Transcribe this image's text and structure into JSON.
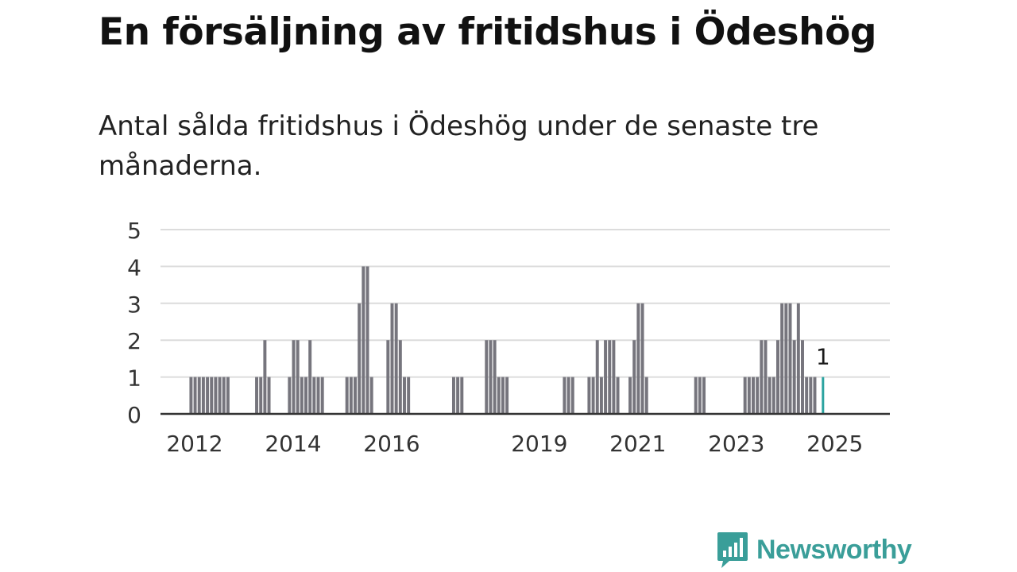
{
  "title": "En försäljning av fritidshus i Ödeshög",
  "subtitle": "Antal sålda fritidshus i Ödeshög under de senaste tre månaderna.",
  "logo": {
    "text": "Newsworthy",
    "icon": "bar-chart-speech-bubble-icon",
    "color": "#3a9e99"
  },
  "colors": {
    "bar": "#76757d",
    "highlight": "#2ba3a0",
    "grid": "#dcdcdc",
    "axis": "#333333"
  },
  "chart_data": {
    "type": "bar",
    "x_axis": {
      "type": "date",
      "start": "2012-01",
      "end": "2025-05",
      "tick_labels": [
        "2012",
        "2014",
        "2016",
        "2019",
        "2021",
        "2023",
        "2025"
      ]
    },
    "ylim": [
      0,
      5
    ],
    "y_ticks": [
      0,
      1,
      2,
      3,
      4,
      5
    ],
    "grid": true,
    "xlabel": "",
    "ylabel": "",
    "months": [
      "2012-06",
      "2012-07",
      "2012-08",
      "2012-09",
      "2012-10",
      "2012-11",
      "2012-12",
      "2013-01",
      "2013-02",
      "2013-03",
      "2013-10",
      "2013-11",
      "2013-12",
      "2014-01",
      "2014-06",
      "2014-07",
      "2014-08",
      "2014-09",
      "2014-10",
      "2014-11",
      "2014-12",
      "2015-01",
      "2015-02",
      "2015-08",
      "2015-09",
      "2015-10",
      "2015-11",
      "2015-12",
      "2016-01",
      "2016-02",
      "2016-06",
      "2016-07",
      "2016-08",
      "2016-09",
      "2016-10",
      "2016-11",
      "2017-10",
      "2017-11",
      "2017-12",
      "2018-06",
      "2018-07",
      "2018-08",
      "2018-09",
      "2018-10",
      "2018-11",
      "2020-01",
      "2020-02",
      "2020-03",
      "2020-07",
      "2020-08",
      "2020-09",
      "2020-10",
      "2020-11",
      "2020-12",
      "2021-01",
      "2021-02",
      "2021-05",
      "2021-06",
      "2021-07",
      "2021-08",
      "2021-09",
      "2022-09",
      "2022-10",
      "2022-11",
      "2023-09",
      "2023-10",
      "2023-11",
      "2023-12",
      "2024-01",
      "2024-02",
      "2024-03",
      "2024-04",
      "2024-05",
      "2024-06",
      "2024-07",
      "2024-08",
      "2024-09",
      "2024-10",
      "2024-11",
      "2024-12",
      "2025-01",
      "2025-02",
      "2025-04"
    ],
    "values": [
      1,
      1,
      1,
      1,
      1,
      1,
      1,
      1,
      1,
      1,
      1,
      1,
      2,
      1,
      1,
      2,
      2,
      1,
      1,
      2,
      1,
      1,
      1,
      1,
      1,
      1,
      3,
      4,
      4,
      1,
      2,
      3,
      3,
      2,
      1,
      1,
      1,
      1,
      1,
      2,
      2,
      2,
      1,
      1,
      1,
      1,
      1,
      1,
      1,
      1,
      2,
      1,
      2,
      2,
      2,
      1,
      1,
      2,
      3,
      3,
      1,
      1,
      1,
      1,
      1,
      1,
      1,
      1,
      2,
      2,
      1,
      1,
      2,
      3,
      3,
      3,
      2,
      3,
      2,
      1,
      1,
      1,
      1
    ],
    "highlight": {
      "month": "2025-04",
      "value": 1,
      "label": "1"
    }
  }
}
